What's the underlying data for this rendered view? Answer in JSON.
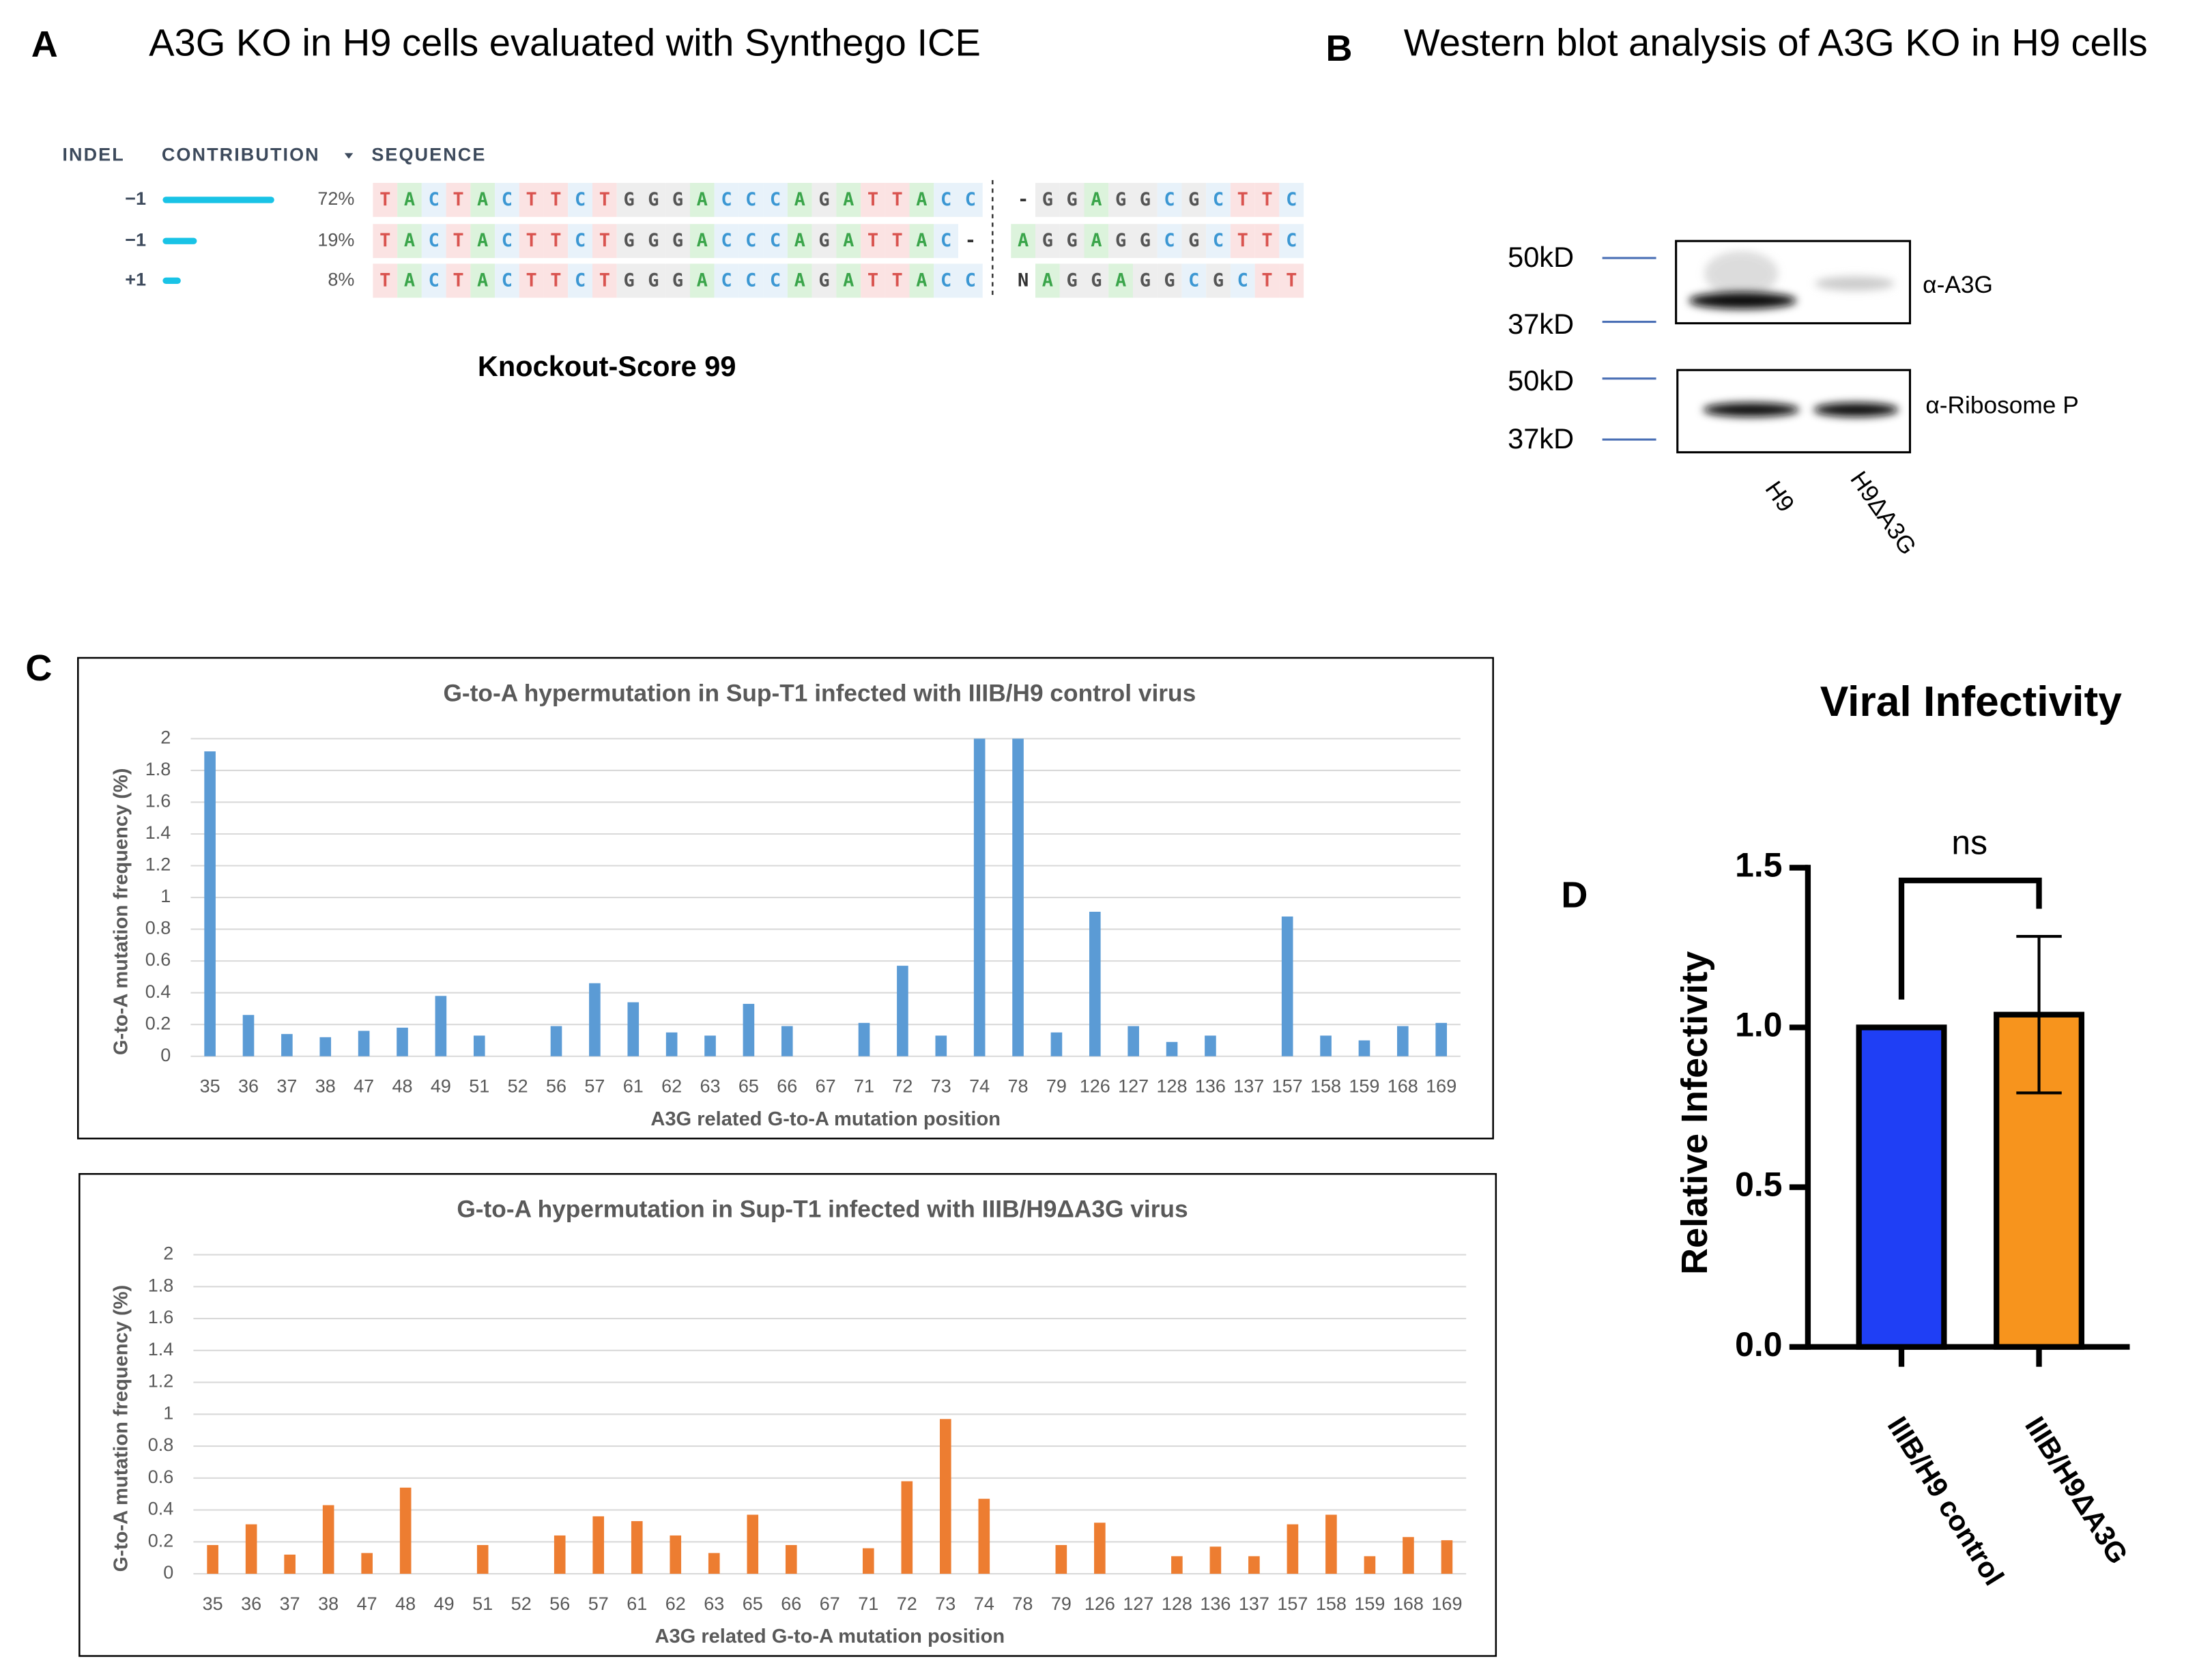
{
  "panel_labels": [
    "A",
    "B",
    "C",
    "D"
  ],
  "panel_a": {
    "title": "A3G KO in H9 cells evaluated with Synthego ICE",
    "headers": [
      "INDEL",
      "CONTRIBUTION",
      "SEQUENCE"
    ],
    "indels": [
      "−1",
      "−1",
      "+1"
    ],
    "contributions": [
      72,
      19,
      8
    ],
    "contribution_labels": [
      "72%",
      "19%",
      "8%"
    ],
    "color": "#19c3e6",
    "sequences_left": [
      "TACTACTTCTGGGACCCAGATTACC",
      "TACTACTTCTGGGACCCAGATTAC-",
      "TACTACTTCTGGGACCCAGATTACC"
    ],
    "sequences_right": [
      "-GGAGGCGCTTC",
      "AGGAGGCGCTTC",
      "NAGGAGGCGCTT"
    ],
    "score": "Knockout-Score 99"
  },
  "panel_b": {
    "title": "Western blot analysis of A3G KO in H9 cells",
    "markers": [
      "50kD",
      "37kD",
      "50kD",
      "37kD"
    ],
    "antibodies": [
      "α-A3G",
      "α-Ribosome P"
    ],
    "lanes": [
      "H9",
      "H9ΔA3G"
    ]
  },
  "chart_data": [
    {
      "type": "bar",
      "title": "G-to-A hypermutation in Sup-T1 infected with IIIB/H9 control virus",
      "x_label": "A3G related G-to-A mutation position",
      "y_label": "G-to-A mutation frequency (%)",
      "categories": [
        "35",
        "36",
        "37",
        "38",
        "47",
        "48",
        "49",
        "51",
        "52",
        "56",
        "57",
        "61",
        "62",
        "63",
        "65",
        "66",
        "67",
        "71",
        "72",
        "73",
        "74",
        "78",
        "79",
        "126",
        "127",
        "128",
        "136",
        "137",
        "157",
        "158",
        "159",
        "168",
        "169"
      ],
      "values": [
        1.92,
        0.26,
        0.14,
        0.12,
        0.16,
        0.18,
        0.38,
        0.13,
        0,
        0.19,
        0.46,
        0.34,
        0.15,
        0.13,
        0.33,
        0.19,
        0,
        0.21,
        0.57,
        0.13,
        2,
        2,
        0.15,
        0.91,
        0.19,
        0.09,
        0.13,
        0,
        0.88,
        0.13,
        0.1,
        0.19,
        0.21
      ],
      "color": "#5b9bd5",
      "ylim": [
        0,
        2
      ],
      "yticks": [
        0,
        0.2,
        0.4,
        0.6,
        0.8,
        1,
        1.2,
        1.4,
        1.6,
        1.8,
        2
      ],
      "grid": true
    },
    {
      "type": "bar",
      "title": "G-to-A hypermutation in Sup-T1 infected with IIIB/H9ΔA3G virus",
      "x_label": "A3G related G-to-A mutation position",
      "y_label": "G-to-A mutation frequency (%)",
      "categories": [
        "35",
        "36",
        "37",
        "38",
        "47",
        "48",
        "49",
        "51",
        "52",
        "56",
        "57",
        "61",
        "62",
        "63",
        "65",
        "66",
        "67",
        "71",
        "72",
        "73",
        "74",
        "78",
        "79",
        "126",
        "127",
        "128",
        "136",
        "137",
        "157",
        "158",
        "159",
        "168",
        "169"
      ],
      "values": [
        0.18,
        0.31,
        0.12,
        0.43,
        0.13,
        0.54,
        0,
        0.18,
        0,
        0.24,
        0.36,
        0.33,
        0.24,
        0.13,
        0.37,
        0.18,
        0,
        0.16,
        0.58,
        0.97,
        0.47,
        0,
        0.18,
        0.32,
        0,
        0.11,
        0.17,
        0.11,
        0.31,
        0.37,
        0.11,
        0.23,
        0.21
      ],
      "color": "#ed7d31",
      "ylim": [
        0,
        2
      ],
      "yticks": [
        0,
        0.2,
        0.4,
        0.6,
        0.8,
        1,
        1.2,
        1.4,
        1.6,
        1.8,
        2
      ],
      "grid": true
    },
    {
      "type": "errorbar",
      "title": "Viral Infectivity",
      "y_label": "Relative Infectivity",
      "categories": [
        "IIIB/H9 control",
        "IIIB/H9ΔA3G"
      ],
      "values": [
        1.0,
        1.04
      ],
      "errors": [
        null,
        0.245
      ],
      "colors": [
        "#1f3ff5",
        "#f7941d"
      ],
      "annotation": "ns",
      "ylim": [
        0,
        1.5
      ],
      "yticks": [
        {
          "value": 0,
          "label": "0.0"
        },
        {
          "value": 0.5,
          "label": "0.5"
        },
        {
          "value": 1.0,
          "label": "1.0"
        },
        {
          "value": 1.5,
          "label": "1.5"
        }
      ],
      "grid": false
    }
  ]
}
